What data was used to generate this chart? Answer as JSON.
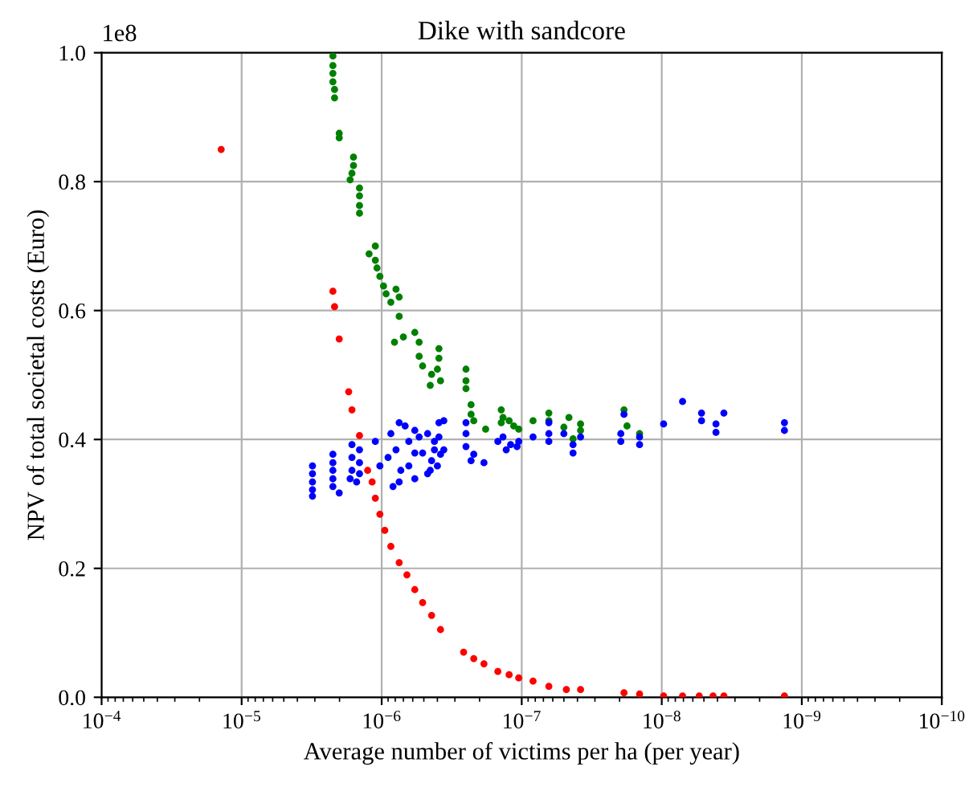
{
  "chart_data": {
    "type": "scatter",
    "title": "Dike with sandcore",
    "xlabel": "Average number of victims per ha (per year)",
    "ylabel": "NPV of total societal costs (Euro)",
    "annotations": [
      "1e8"
    ],
    "log": "x",
    "grid": true,
    "marker": "circle",
    "legend": false,
    "xlim": [
      0.0001,
      1e-10
    ],
    "xticks": [
      {
        "value": 0.0001,
        "label": "10$^{−4}$"
      },
      {
        "value": 1e-05,
        "label": "10$^{−5}$"
      },
      {
        "value": 1e-06,
        "label": "10$^{−6}$"
      },
      {
        "value": 1e-07,
        "label": "10$^{−7}$"
      },
      {
        "value": 1e-08,
        "label": "10$^{−8}$"
      },
      {
        "value": 1e-09,
        "label": "10$^{−9}$"
      },
      {
        "value": 1e-10,
        "label": "10$^{−10}$"
      }
    ],
    "ylim": [
      0,
      1
    ],
    "yticks": [
      {
        "value": 0,
        "label": "0.0"
      },
      0.2,
      0.4,
      0.6,
      0.8,
      {
        "value": 1,
        "label": "1.0"
      }
    ],
    "series": [
      {
        "color": "#ff0000",
        "x": [
          1.4e-05,
          2.23e-06,
          2.17e-06,
          2.01e-06,
          1.72e-06,
          1.63e-06,
          1.44e-06,
          1.26e-06,
          1.17e-06,
          1.11e-06,
          1.03e-06,
          9.5e-07,
          8.6e-07,
          7.5e-07,
          6.6e-07,
          5.8e-07,
          5.1e-07,
          4.4e-07,
          3.8e-07,
          2.6e-07,
          2.2e-07,
          1.86e-07,
          1.48e-07,
          1.23e-07,
          1.05e-07,
          8.3e-08,
          6.4e-08,
          4.8e-08,
          3.8e-08,
          1.86e-08,
          1.44e-08,
          9.7e-09,
          7.1e-09,
          5.4e-09,
          4.3e-09,
          3.6e-09,
          1.33e-09
        ],
        "values": [
          0.85,
          0.63,
          0.606,
          0.556,
          0.474,
          0.446,
          0.406,
          0.352,
          0.334,
          0.309,
          0.284,
          0.259,
          0.234,
          0.209,
          0.19,
          0.167,
          0.147,
          0.127,
          0.105,
          0.07,
          0.06,
          0.052,
          0.04,
          0.035,
          0.03,
          0.025,
          0.017,
          0.012,
          0.012,
          0.007,
          0.005,
          0.002,
          0.002,
          0.002,
          0.002,
          0.002,
          0.002
        ]
      },
      {
        "color": "#008000",
        "x": [
          2.23e-06,
          2.23e-06,
          2.23e-06,
          2.23e-06,
          2.17e-06,
          2.17e-06,
          2.01e-06,
          2.01e-06,
          1.59e-06,
          1.59e-06,
          1.63e-06,
          1.68e-06,
          1.44e-06,
          1.44e-06,
          1.44e-06,
          1.44e-06,
          1.11e-06,
          1.23e-06,
          1.11e-06,
          1.08e-06,
          1.03e-06,
          9.7e-07,
          9.3e-07,
          8.6e-07,
          7.9e-07,
          7.5e-07,
          7.5e-07,
          8.1e-07,
          7e-07,
          5.8e-07,
          5.4e-07,
          5.4e-07,
          5.1e-07,
          3.9e-07,
          3.9e-07,
          4e-07,
          4.4e-07,
          3.8e-07,
          4.5e-07,
          2.5e-07,
          2.5e-07,
          2.5e-07,
          2.3e-07,
          2.3e-07,
          2.2e-07,
          1.81e-07,
          1.4e-07,
          1.36e-07,
          1.23e-07,
          1.4e-07,
          1.14e-07,
          1.05e-07,
          8.3e-08,
          6.4e-08,
          6.4e-08,
          5e-08,
          4.6e-08,
          3.8e-08,
          3.8e-08,
          4.3e-08,
          1.86e-08,
          1.77e-08,
          1.44e-08
        ],
        "values": [
          0.995,
          0.98,
          0.968,
          0.955,
          0.943,
          0.93,
          0.875,
          0.868,
          0.838,
          0.825,
          0.813,
          0.803,
          0.79,
          0.778,
          0.763,
          0.751,
          0.7,
          0.688,
          0.678,
          0.666,
          0.653,
          0.638,
          0.626,
          0.613,
          0.633,
          0.621,
          0.591,
          0.551,
          0.559,
          0.566,
          0.551,
          0.529,
          0.514,
          0.541,
          0.526,
          0.509,
          0.501,
          0.491,
          0.484,
          0.509,
          0.491,
          0.479,
          0.454,
          0.439,
          0.429,
          0.416,
          0.446,
          0.434,
          0.429,
          0.426,
          0.421,
          0.416,
          0.429,
          0.441,
          0.429,
          0.419,
          0.434,
          0.424,
          0.414,
          0.401,
          0.446,
          0.421,
          0.409
        ]
      },
      {
        "color": "#0000ff",
        "x": [
          3.12e-06,
          3.12e-06,
          3.12e-06,
          3.12e-06,
          3.12e-06,
          2.23e-06,
          2.23e-06,
          2.23e-06,
          2.23e-06,
          2.23e-06,
          2.01e-06,
          1.63e-06,
          1.63e-06,
          1.63e-06,
          1.51e-06,
          1.44e-06,
          1.44e-06,
          1.44e-06,
          1.68e-06,
          1.11e-06,
          1.03e-06,
          9e-07,
          8.6e-07,
          7.9e-07,
          7.3e-07,
          7.5e-07,
          6.8e-07,
          6.4e-07,
          5.8e-07,
          5.8e-07,
          6.4e-07,
          7.5e-07,
          8.3e-07,
          5.4e-07,
          5.1e-07,
          4.7e-07,
          4.2e-07,
          4e-07,
          3.6e-07,
          3.6e-07,
          4.7e-07,
          5.8e-07,
          3.9e-07,
          3.9e-07,
          4.2e-07,
          4.4e-07,
          4.5e-07,
          3.8e-07,
          2.5e-07,
          2.5e-07,
          2.5e-07,
          2.3e-07,
          2.2e-07,
          1.86e-07,
          1.48e-07,
          1.36e-07,
          1.29e-07,
          1.2e-07,
          1.08e-07,
          1.05e-07,
          8.3e-08,
          6.4e-08,
          6.4e-08,
          6.4e-08,
          5e-08,
          4.3e-08,
          4.3e-08,
          3.8e-08,
          1.96e-08,
          1.96e-08,
          1.86e-08,
          1.44e-08,
          1.44e-08,
          9.7e-09,
          7.1e-09,
          5.2e-09,
          5.2e-09,
          4.1e-09,
          4.1e-09,
          3.6e-09,
          1.33e-09,
          1.33e-09
        ],
        "values": [
          0.359,
          0.347,
          0.334,
          0.322,
          0.312,
          0.377,
          0.364,
          0.352,
          0.339,
          0.327,
          0.317,
          0.392,
          0.372,
          0.352,
          0.334,
          0.384,
          0.364,
          0.347,
          0.339,
          0.397,
          0.359,
          0.372,
          0.409,
          0.384,
          0.352,
          0.334,
          0.421,
          0.397,
          0.414,
          0.379,
          0.359,
          0.426,
          0.327,
          0.404,
          0.379,
          0.409,
          0.397,
          0.359,
          0.429,
          0.384,
          0.347,
          0.339,
          0.426,
          0.404,
          0.384,
          0.367,
          0.352,
          0.377,
          0.426,
          0.409,
          0.389,
          0.367,
          0.377,
          0.364,
          0.397,
          0.404,
          0.384,
          0.392,
          0.389,
          0.397,
          0.404,
          0.426,
          0.409,
          0.397,
          0.409,
          0.392,
          0.379,
          0.404,
          0.409,
          0.397,
          0.439,
          0.404,
          0.392,
          0.424,
          0.459,
          0.441,
          0.429,
          0.424,
          0.411,
          0.441,
          0.426,
          0.414
        ]
      }
    ]
  }
}
